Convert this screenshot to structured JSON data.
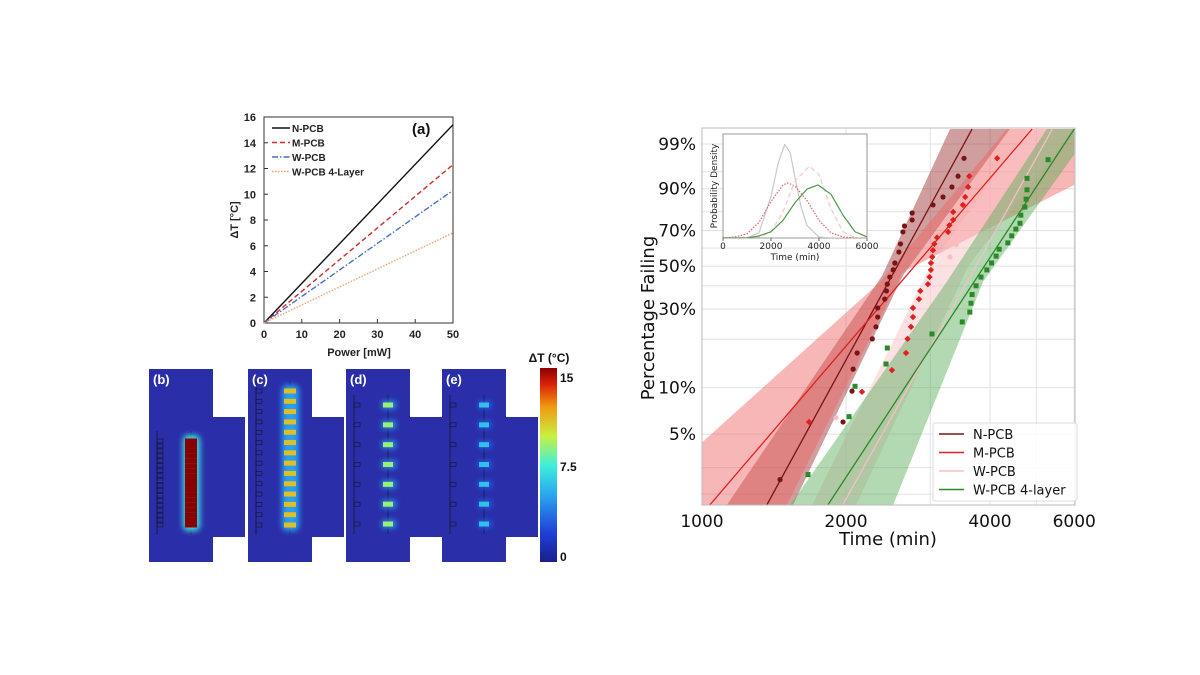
{
  "chart_data": [
    {
      "type": "line",
      "panel_label": "(a)",
      "xlabel": "Power [mW]",
      "ylabel": "ΔT [°C]",
      "xlim": [
        0,
        50
      ],
      "ylim": [
        0,
        16
      ],
      "xticks": [
        "0",
        "10",
        "20",
        "30",
        "40",
        "50"
      ],
      "yticks": [
        "0",
        "2",
        "4",
        "6",
        "8",
        "10",
        "12",
        "14",
        "16"
      ],
      "legend_position": "top-left",
      "grid": false,
      "x": [
        0,
        50
      ],
      "series": [
        {
          "name": "N-PCB",
          "values": [
            0,
            15.4
          ],
          "color": "#111111",
          "style": "solid"
        },
        {
          "name": "M-PCB",
          "values": [
            0,
            12.3
          ],
          "color": "#d02828",
          "style": "dashed"
        },
        {
          "name": "W-PCB",
          "values": [
            0,
            10.3
          ],
          "color": "#4a6fc0",
          "style": "dashdot"
        },
        {
          "name": "W-PCB 4-Layer",
          "values": [
            0,
            7.0
          ],
          "color": "#f0a070",
          "style": "dotted"
        }
      ]
    },
    {
      "type": "heatmap",
      "panels": [
        "(b)",
        "(c)",
        "(d)",
        "(e)"
      ],
      "colorbar": {
        "title": "ΔT (°C)",
        "ticks": [
          "15",
          "7.5",
          "0"
        ],
        "range": [
          0,
          15
        ]
      },
      "hotspot_counts": [
        18,
        14,
        7,
        7
      ],
      "hotspot_levels_degC": [
        15,
        11,
        9,
        6
      ]
    },
    {
      "type": "scatter",
      "xlabel": "Time (min)",
      "ylabel": "Percentage Failing",
      "x_scale": "log",
      "y_scale": "weibull",
      "xlim": [
        1000,
        6000
      ],
      "ylim": [
        1.7,
        99.7
      ],
      "xticks": [
        "1000",
        "2000",
        "4000",
        "6000"
      ],
      "xtick_values": [
        1000,
        2000,
        4000,
        6000
      ],
      "yticks": [
        "99%",
        "90%",
        "70%",
        "50%",
        "30%",
        "10%",
        "5%"
      ],
      "ytick_values": [
        99,
        90,
        70,
        50,
        30,
        10,
        5
      ],
      "grid": true,
      "legend_position": "bottom-right",
      "series": [
        {
          "name": "N-PCB",
          "color": "#7a1414",
          "marker": "circle",
          "band_color": "rgba(150,40,40,0.45)",
          "points": [
            [
              1456,
              2.5
            ],
            [
              1971,
              6.0
            ],
            [
              2059,
              9.5
            ],
            [
              2070,
              13.1
            ],
            [
              2110,
              16.5
            ],
            [
              2270,
              20.1
            ],
            [
              2310,
              23.7
            ],
            [
              2330,
              27
            ],
            [
              2330,
              30.4
            ],
            [
              2410,
              34
            ],
            [
              2430,
              37.6
            ],
            [
              2440,
              40.8
            ],
            [
              2470,
              44.3
            ],
            [
              2510,
              48
            ],
            [
              2530,
              51.7
            ],
            [
              2580,
              57.8
            ],
            [
              2600,
              62.4
            ],
            [
              2630,
              69.2
            ],
            [
              2650,
              72.5
            ],
            [
              2750,
              75.8
            ],
            [
              2750,
              79.4
            ],
            [
              3040,
              83.3
            ],
            [
              3190,
              86.8
            ],
            [
              3330,
              90.6
            ],
            [
              3430,
              93.9
            ],
            [
              3530,
              97.5
            ]
          ],
          "fit": [
            [
              1367,
              1.7
            ],
            [
              3670,
              99.7
            ]
          ],
          "band": [
            [
              1128,
              1.7
            ],
            [
              2380,
              45
            ],
            [
              3300,
              99.7
            ],
            [
              4400,
              99.7
            ],
            [
              2630,
              45
            ],
            [
              1550,
              1.7
            ]
          ]
        },
        {
          "name": "M-PCB",
          "color": "#e02020",
          "marker": "diamond",
          "band_color": "rgba(240,95,95,0.45)",
          "points": [
            [
              1674,
              6.0
            ],
            [
              2160,
              9.4
            ],
            [
              2495,
              12.9
            ],
            [
              2670,
              16.5
            ],
            [
              2690,
              20.1
            ],
            [
              2735,
              23.7
            ],
            [
              2761,
              27
            ],
            [
              2761,
              30.4
            ],
            [
              2842,
              34
            ],
            [
              2860,
              37.6
            ],
            [
              2967,
              40.8
            ],
            [
              2990,
              44.3
            ],
            [
              3010,
              48
            ],
            [
              3010,
              51.7
            ],
            [
              3030,
              55
            ],
            [
              3040,
              58.8
            ],
            [
              3060,
              62.4
            ],
            [
              3100,
              66
            ],
            [
              3270,
              69.2
            ],
            [
              3290,
              72.9
            ],
            [
              3350,
              75.8
            ],
            [
              3350,
              79.9
            ],
            [
              3510,
              83.3
            ],
            [
              3550,
              86.8
            ],
            [
              3600,
              90.6
            ],
            [
              3620,
              93.9
            ],
            [
              4140,
              97.5
            ]
          ],
          "fit": [
            [
              1039,
              1.7
            ],
            [
              4900,
              99.7
            ]
          ],
          "band": [
            [
              1000,
              1.7
            ],
            [
              1000,
              4.4
            ],
            [
              2355,
              41.8
            ],
            [
              4340,
              99.7
            ],
            [
              6000,
              99.7
            ],
            [
              6000,
              91.3
            ],
            [
              2630,
              46.9
            ],
            [
              1505,
              1.7
            ]
          ]
        },
        {
          "name": "W-PCB",
          "color": "#f4c0c6",
          "marker": "circle",
          "band_color": "rgba(250,195,200,0.5)",
          "points": [
            [
              1906,
              6.4
            ],
            [
              3300,
              55
            ],
            [
              3400,
              62
            ],
            [
              3500,
              68
            ],
            [
              3600,
              74
            ],
            [
              3700,
              79
            ]
          ],
          "fit": [
            [
              1970,
              1.7
            ],
            [
              5400,
              99.7
            ]
          ],
          "band": [
            [
              1700,
              1.7
            ],
            [
              3000,
              50
            ],
            [
              4800,
              99.7
            ],
            [
              6000,
              99.7
            ],
            [
              3600,
              50
            ],
            [
              2100,
              1.7
            ]
          ]
        },
        {
          "name": "W-PCB 4-layer",
          "color": "#2a8a2a",
          "marker": "square",
          "band_color": "rgba(85,170,85,0.45)",
          "points": [
            [
              1666,
              2.7
            ],
            [
              2030,
              6.5
            ],
            [
              2089,
              10.2
            ],
            [
              2425,
              14.1
            ],
            [
              2440,
              17.7
            ],
            [
              3025,
              21.5
            ],
            [
              3500,
              25.3
            ],
            [
              3630,
              28.8
            ],
            [
              3650,
              32.3
            ],
            [
              3670,
              36
            ],
            [
              3740,
              40
            ],
            [
              3830,
              44.3
            ],
            [
              3940,
              48
            ],
            [
              4030,
              51.7
            ],
            [
              4120,
              55.5
            ],
            [
              4180,
              59.4
            ],
            [
              4360,
              63
            ],
            [
              4440,
              67
            ],
            [
              4530,
              70.8
            ],
            [
              4620,
              74
            ],
            [
              4640,
              78.3
            ],
            [
              4730,
              82.3
            ],
            [
              4760,
              85.9
            ],
            [
              4780,
              89.6
            ],
            [
              4780,
              93.3
            ],
            [
              5290,
              97.3
            ]
          ],
          "fit": [
            [
              1834,
              1.7
            ],
            [
              6000,
              99.7
            ]
          ],
          "band": [
            [
              1530,
              1.7
            ],
            [
              3250,
              42
            ],
            [
              5260,
              99.7
            ],
            [
              6000,
              99.7
            ],
            [
              6000,
              98
            ],
            [
              3870,
              42
            ],
            [
              2510,
              1.7
            ]
          ]
        }
      ],
      "inset": {
        "type": "line",
        "xlabel": "Time (min)",
        "ylabel": "Probability Density",
        "xlim": [
          0,
          6000
        ],
        "xticks": [
          "0",
          "2000",
          "4000",
          "6000"
        ],
        "xtick_values": [
          0,
          2000,
          4000,
          6000
        ],
        "series": [
          {
            "color": "#c8c8c8",
            "style": "solid",
            "points": [
              [
                0,
                0
              ],
              [
                1000,
                0.002
              ],
              [
                1500,
                0.05
              ],
              [
                2000,
                0.4
              ],
              [
                2300,
                0.72
              ],
              [
                2570,
                0.9
              ],
              [
                2800,
                0.82
              ],
              [
                3000,
                0.58
              ],
              [
                3250,
                0.3
              ],
              [
                3500,
                0.12
              ],
              [
                4000,
                0.01
              ],
              [
                4500,
                0
              ],
              [
                6000,
                0
              ]
            ]
          },
          {
            "color": "#e05a6a",
            "style": "dotted",
            "points": [
              [
                0,
                0
              ],
              [
                500,
                0.01
              ],
              [
                1000,
                0.04
              ],
              [
                1500,
                0.15
              ],
              [
                2000,
                0.35
              ],
              [
                2500,
                0.51
              ],
              [
                2700,
                0.53
              ],
              [
                3000,
                0.5
              ],
              [
                3500,
                0.36
              ],
              [
                4000,
                0.17
              ],
              [
                4500,
                0.05
              ],
              [
                5000,
                0.01
              ],
              [
                5500,
                0
              ],
              [
                6000,
                0
              ]
            ]
          },
          {
            "color": "#f6c6cc",
            "style": "dashed",
            "points": [
              [
                0,
                0
              ],
              [
                1500,
                0.01
              ],
              [
                2000,
                0.06
              ],
              [
                2500,
                0.25
              ],
              [
                3000,
                0.55
              ],
              [
                3600,
                0.69
              ],
              [
                4000,
                0.61
              ],
              [
                4500,
                0.28
              ],
              [
                5000,
                0.06
              ],
              [
                5500,
                0.005
              ],
              [
                6000,
                0
              ]
            ]
          },
          {
            "color": "#4a9a4a",
            "style": "solid",
            "points": [
              [
                0,
                0
              ],
              [
                1000,
                0
              ],
              [
                1500,
                0.02
              ],
              [
                2000,
                0.06
              ],
              [
                2500,
                0.17
              ],
              [
                3000,
                0.34
              ],
              [
                3500,
                0.47
              ],
              [
                3960,
                0.51
              ],
              [
                4500,
                0.42
              ],
              [
                5000,
                0.22
              ],
              [
                5500,
                0.06
              ],
              [
                6000,
                0.01
              ]
            ]
          }
        ]
      }
    }
  ]
}
